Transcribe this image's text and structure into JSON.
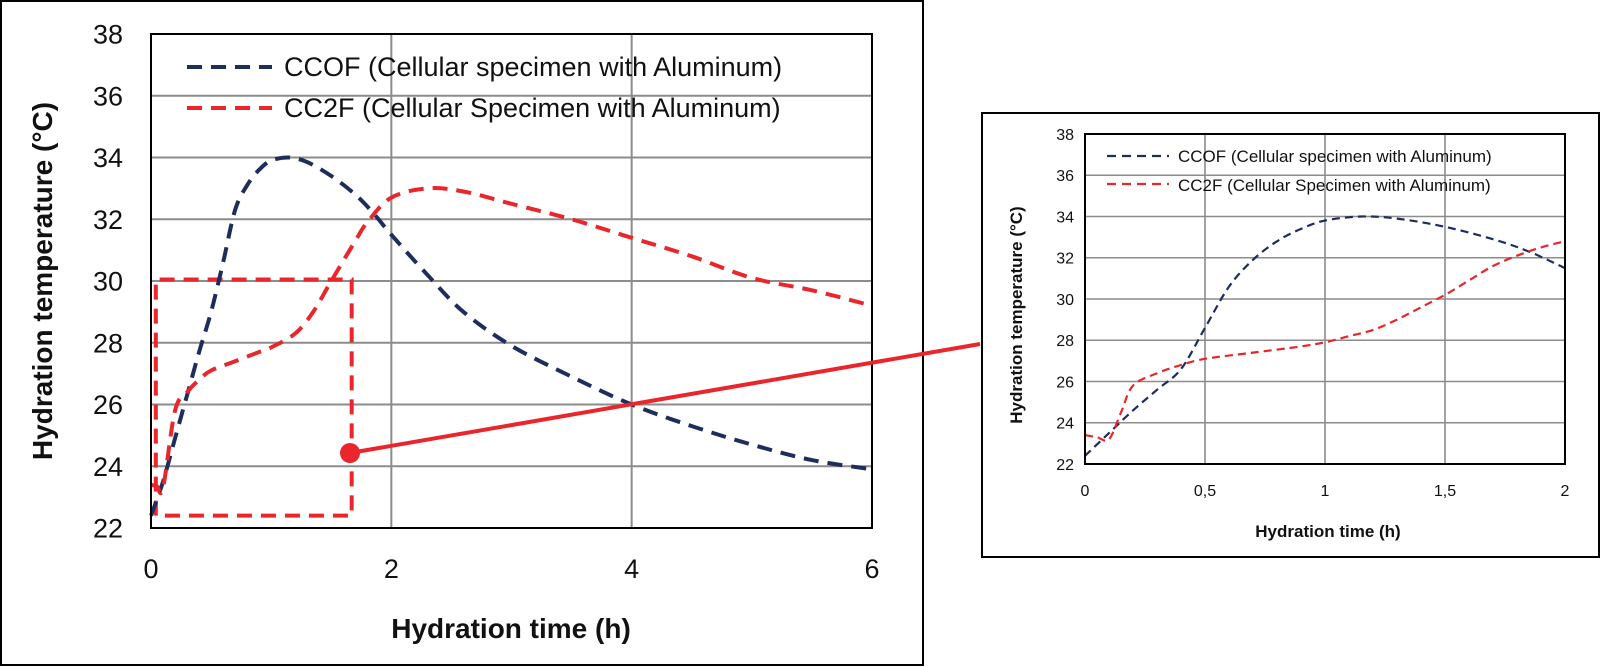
{
  "colors": {
    "series_ccof": "#1f2d5c",
    "series_cc2f": "#e8262c",
    "grid": "#8c8c8c",
    "axis_text": "#111111"
  },
  "chart_data": [
    {
      "id": "main",
      "type": "line",
      "xlabel": "Hydration time (h)",
      "ylabel": "Hydration temperature (°C)",
      "xlim": [
        0,
        6
      ],
      "ylim": [
        22,
        38
      ],
      "x_ticks": [
        0,
        2,
        4,
        6
      ],
      "x_tick_labels": [
        "0",
        "2",
        "4",
        "6"
      ],
      "y_ticks": [
        22,
        24,
        26,
        28,
        30,
        32,
        34,
        36,
        38
      ],
      "y_tick_labels": [
        "22",
        "24",
        "26",
        "28",
        "30",
        "32",
        "34",
        "36",
        "38"
      ],
      "x_grid": [
        0,
        2,
        4,
        6
      ],
      "grid": true,
      "legend_position": "top-left",
      "series": [
        {
          "name": "CCOF (Cellular specimen with Aluminum)",
          "color": "#1f2d5c",
          "dash": "dashed",
          "points": [
            [
              0,
              22.4
            ],
            [
              0.1,
              23.5
            ],
            [
              0.2,
              24.9
            ],
            [
              0.3,
              26.3
            ],
            [
              0.4,
              27.7
            ],
            [
              0.5,
              29.0
            ],
            [
              0.6,
              30.6
            ],
            [
              0.7,
              32.3
            ],
            [
              0.8,
              33.1
            ],
            [
              0.9,
              33.6
            ],
            [
              1.0,
              33.9
            ],
            [
              1.15,
              34.0
            ],
            [
              1.3,
              33.85
            ],
            [
              1.5,
              33.4
            ],
            [
              1.7,
              32.8
            ],
            [
              1.85,
              32.2
            ],
            [
              2.0,
              31.5
            ],
            [
              2.3,
              30.2
            ],
            [
              2.6,
              29.0
            ],
            [
              3.0,
              27.9
            ],
            [
              3.5,
              26.9
            ],
            [
              4.0,
              26.0
            ],
            [
              4.5,
              25.3
            ],
            [
              5.0,
              24.7
            ],
            [
              5.5,
              24.2
            ],
            [
              6.0,
              23.9
            ]
          ]
        },
        {
          "name": "CC2F (Cellular Specimen with Aluminum)",
          "color": "#e8262c",
          "dash": "dashed",
          "points": [
            [
              0,
              23.4
            ],
            [
              0.05,
              23.35
            ],
            [
              0.1,
              23.3
            ],
            [
              0.2,
              25.8
            ],
            [
              0.3,
              26.4
            ],
            [
              0.4,
              26.8
            ],
            [
              0.5,
              27.1
            ],
            [
              0.7,
              27.4
            ],
            [
              0.9,
              27.7
            ],
            [
              1.0,
              27.85
            ],
            [
              1.2,
              28.3
            ],
            [
              1.35,
              29.0
            ],
            [
              1.5,
              30.0
            ],
            [
              1.7,
              31.3
            ],
            [
              1.8,
              31.9
            ],
            [
              2.0,
              32.7
            ],
            [
              2.3,
              33.0
            ],
            [
              2.6,
              32.9
            ],
            [
              3.0,
              32.5
            ],
            [
              3.5,
              32.0
            ],
            [
              4.0,
              31.4
            ],
            [
              4.5,
              30.8
            ],
            [
              5.0,
              30.1
            ],
            [
              5.5,
              29.7
            ],
            [
              6.0,
              29.2
            ]
          ]
        }
      ]
    },
    {
      "id": "inset",
      "type": "line",
      "xlabel": "Hydration time (h)",
      "ylabel": "Hydration temperature (°C)",
      "xlim": [
        0,
        2
      ],
      "ylim": [
        22,
        38
      ],
      "x_ticks": [
        0,
        0.5,
        1,
        1.5,
        2
      ],
      "x_tick_labels": [
        "0",
        "0,5",
        "1",
        "1,5",
        "2"
      ],
      "y_ticks": [
        22,
        24,
        26,
        28,
        30,
        32,
        34,
        36,
        38
      ],
      "y_tick_labels": [
        "22",
        "24",
        "26",
        "28",
        "30",
        "32",
        "34",
        "36",
        "38"
      ],
      "x_grid": [
        0,
        0.5,
        1,
        1.5,
        2
      ],
      "grid": true,
      "legend_position": "top-left",
      "series": [
        {
          "name": "CCOF (Cellular specimen with Aluminum)",
          "color": "#1f2d5c",
          "dash": "dashed",
          "points": [
            [
              0,
              22.4
            ],
            [
              0.1,
              23.5
            ],
            [
              0.2,
              24.6
            ],
            [
              0.3,
              25.6
            ],
            [
              0.4,
              26.6
            ],
            [
              0.5,
              28.6
            ],
            [
              0.6,
              30.6
            ],
            [
              0.7,
              31.9
            ],
            [
              0.8,
              32.8
            ],
            [
              0.9,
              33.4
            ],
            [
              1.0,
              33.8
            ],
            [
              1.15,
              34.0
            ],
            [
              1.3,
              33.9
            ],
            [
              1.5,
              33.5
            ],
            [
              1.7,
              32.9
            ],
            [
              1.85,
              32.3
            ],
            [
              2.0,
              31.5
            ]
          ]
        },
        {
          "name": "CC2F (Cellular Specimen with Aluminum)",
          "color": "#e8262c",
          "dash": "dashed",
          "points": [
            [
              0,
              23.4
            ],
            [
              0.05,
              23.3
            ],
            [
              0.1,
              23.2
            ],
            [
              0.15,
              24.5
            ],
            [
              0.2,
              25.8
            ],
            [
              0.3,
              26.4
            ],
            [
              0.4,
              26.8
            ],
            [
              0.5,
              27.1
            ],
            [
              0.7,
              27.4
            ],
            [
              0.9,
              27.7
            ],
            [
              1.0,
              27.9
            ],
            [
              1.1,
              28.2
            ],
            [
              1.2,
              28.5
            ],
            [
              1.3,
              29.0
            ],
            [
              1.4,
              29.6
            ],
            [
              1.5,
              30.2
            ],
            [
              1.6,
              30.9
            ],
            [
              1.7,
              31.6
            ],
            [
              1.8,
              32.1
            ],
            [
              1.9,
              32.5
            ],
            [
              2.0,
              32.8
            ]
          ]
        }
      ]
    }
  ]
}
